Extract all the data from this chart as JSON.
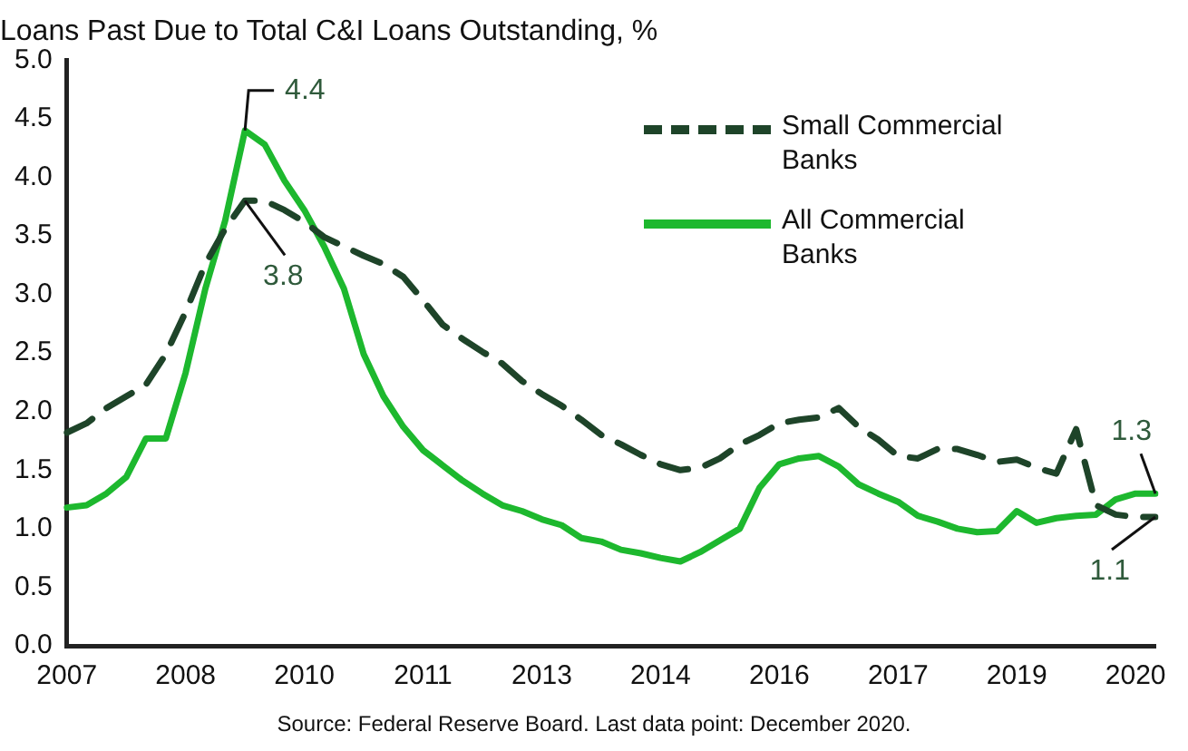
{
  "chart_data": {
    "type": "line",
    "title": "Loans Past Due to Total C&I Loans Outstanding, %",
    "categories": [
      "2007",
      null,
      null,
      null,
      null,
      null,
      "2008",
      null,
      null,
      null,
      null,
      null,
      "2010",
      null,
      null,
      null,
      null,
      null,
      "2011",
      null,
      null,
      null,
      null,
      null,
      "2013",
      null,
      null,
      null,
      null,
      null,
      "2014",
      null,
      null,
      null,
      null,
      null,
      "2016",
      null,
      null,
      null,
      null,
      null,
      "2017",
      null,
      null,
      null,
      null,
      null,
      "2019",
      null,
      null,
      null,
      null,
      null,
      "2020",
      null
    ],
    "series": [
      {
        "name": "Small Commercial Banks",
        "color": "#1e4429",
        "line_style": "dashed",
        "value_labels": [
          null,
          null,
          null,
          null,
          null,
          null,
          null,
          null,
          null,
          "3.8",
          null,
          null,
          null,
          null,
          null,
          null,
          null,
          null,
          null,
          null,
          null,
          null,
          null,
          null,
          null,
          null,
          null,
          null,
          null,
          null,
          null,
          null,
          null,
          null,
          null,
          null,
          null,
          null,
          null,
          null,
          null,
          null,
          null,
          null,
          null,
          null,
          null,
          null,
          null,
          null,
          null,
          null,
          null,
          null,
          null,
          "1.1"
        ],
        "values": [
          1.82,
          1.9,
          2.03,
          2.13,
          2.23,
          2.49,
          2.85,
          3.26,
          3.56,
          3.8,
          3.8,
          3.72,
          3.62,
          3.49,
          3.41,
          3.33,
          3.26,
          3.15,
          2.95,
          2.74,
          2.62,
          2.51,
          2.41,
          2.26,
          2.15,
          2.05,
          1.93,
          1.8,
          1.72,
          1.63,
          1.55,
          1.5,
          1.52,
          1.6,
          1.72,
          1.8,
          1.9,
          1.93,
          1.95,
          2.03,
          1.87,
          1.76,
          1.62,
          1.6,
          1.68,
          1.68,
          1.63,
          1.57,
          1.59,
          1.52,
          1.47,
          1.85,
          1.2,
          1.12,
          1.1,
          1.1
        ]
      },
      {
        "name": "All Commercial Banks",
        "color": "#1db82e",
        "line_style": "solid",
        "value_labels": [
          null,
          null,
          null,
          null,
          null,
          null,
          null,
          null,
          null,
          "4.4",
          null,
          null,
          null,
          null,
          null,
          null,
          null,
          null,
          null,
          null,
          null,
          null,
          null,
          null,
          null,
          null,
          null,
          null,
          null,
          null,
          null,
          null,
          null,
          null,
          null,
          null,
          null,
          null,
          null,
          null,
          null,
          null,
          null,
          null,
          null,
          null,
          null,
          null,
          null,
          null,
          null,
          null,
          null,
          null,
          null,
          "1.3"
        ],
        "values": [
          1.18,
          1.2,
          1.3,
          1.44,
          1.77,
          1.77,
          2.33,
          3.05,
          3.63,
          4.4,
          4.28,
          3.97,
          3.72,
          3.41,
          3.05,
          2.49,
          2.13,
          1.87,
          1.67,
          1.54,
          1.41,
          1.3,
          1.2,
          1.15,
          1.08,
          1.03,
          0.92,
          0.89,
          0.82,
          0.79,
          0.75,
          0.72,
          0.8,
          0.9,
          1.0,
          1.35,
          1.55,
          1.6,
          1.62,
          1.53,
          1.38,
          1.3,
          1.23,
          1.11,
          1.06,
          1.0,
          0.97,
          0.98,
          1.15,
          1.05,
          1.09,
          1.11,
          1.12,
          1.25,
          1.3,
          1.3
        ]
      }
    ],
    "ylim": [
      0,
      5
    ],
    "yticks": [
      {
        "value": 0,
        "label": "0.0"
      },
      {
        "value": 0.5,
        "label": "0.5"
      },
      {
        "value": 1,
        "label": "1.0"
      },
      {
        "value": 1.5,
        "label": "1.5"
      },
      {
        "value": 2,
        "label": "2.0"
      },
      {
        "value": 2.5,
        "label": "2.5"
      },
      {
        "value": 3,
        "label": "3.0"
      },
      {
        "value": 3.5,
        "label": "3.5"
      },
      {
        "value": 4,
        "label": "4.0"
      },
      {
        "value": 4.5,
        "label": "4.5"
      },
      {
        "value": 5,
        "label": "5.0"
      }
    ],
    "grid": false,
    "legend": "top right",
    "marker": "none",
    "annotations": [
      "Source: Federal Reserve Board. Last data point: December 2020."
    ]
  }
}
